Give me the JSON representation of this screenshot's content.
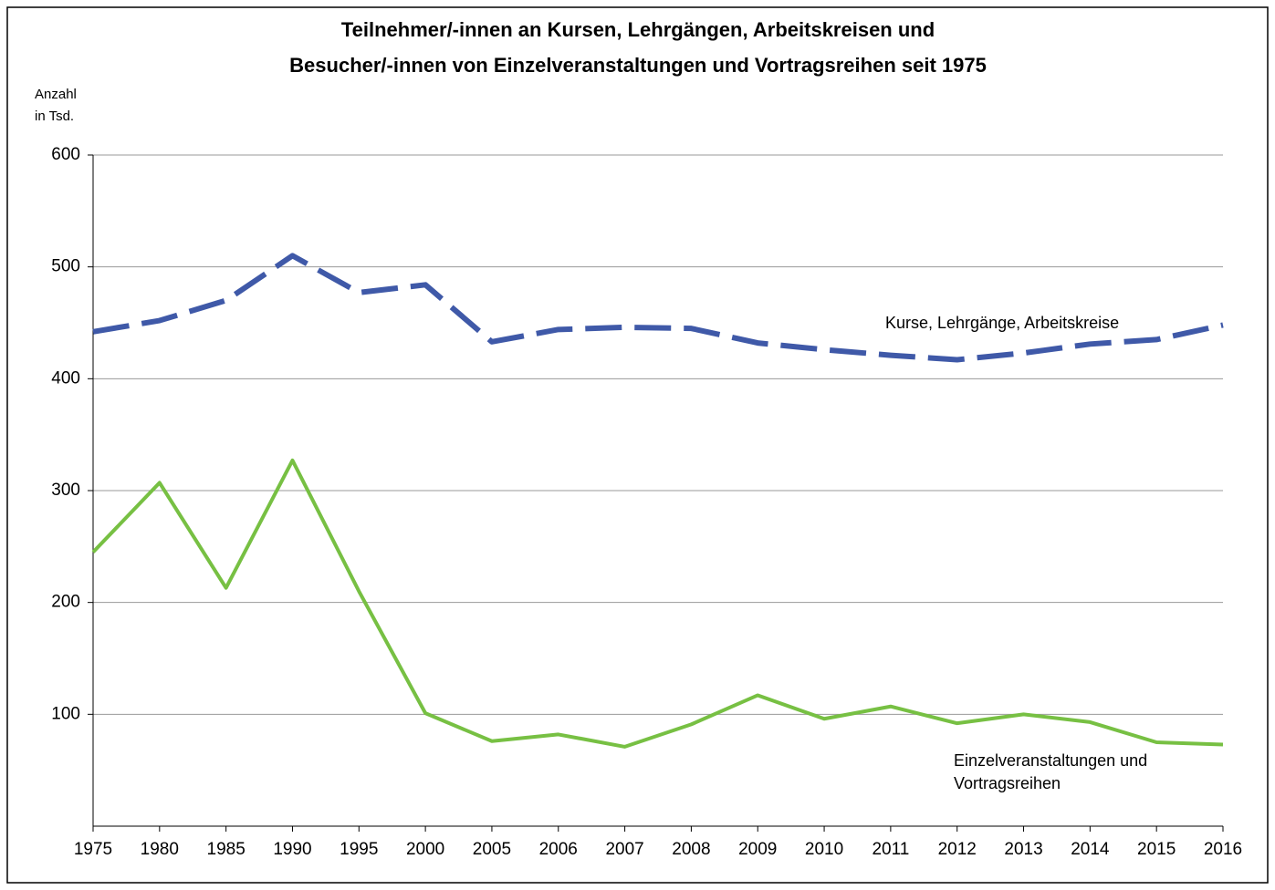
{
  "chart_data": {
    "type": "line",
    "title": [
      "Teilnehmer/-innen an Kursen, Lehrgängen, Arbeitskreisen und",
      "Besucher/-innen von Einzelveranstaltungen und Vortragsreihen seit 1975"
    ],
    "ylabel": [
      "Anzahl",
      "in Tsd."
    ],
    "categories": [
      "1975",
      "1980",
      "1985",
      "1990",
      "1995",
      "2000",
      "2005",
      "2006",
      "2007",
      "2008",
      "2009",
      "2010",
      "2011",
      "2012",
      "2013",
      "2014",
      "2015",
      "2016"
    ],
    "series": [
      {
        "name": "Kurse, Lehrgänge, Arbeitskreise",
        "color": "#3f59a8",
        "dashed": true,
        "values": [
          442,
          452,
          470,
          510,
          477,
          484,
          433,
          444,
          446,
          445,
          432,
          426,
          421,
          417,
          423,
          431,
          435,
          448
        ]
      },
      {
        "name": "Einzelveranstaltungen und Vortragsreihen",
        "color": "#77c043",
        "dashed": false,
        "values": [
          245,
          307,
          213,
          327,
          210,
          101,
          76,
          82,
          71,
          91,
          117,
          96,
          107,
          92,
          100,
          93,
          75,
          73
        ]
      }
    ],
    "ylim": [
      0,
      600
    ],
    "yticks": [
      100,
      200,
      300,
      400,
      500,
      600
    ],
    "grid": true
  }
}
